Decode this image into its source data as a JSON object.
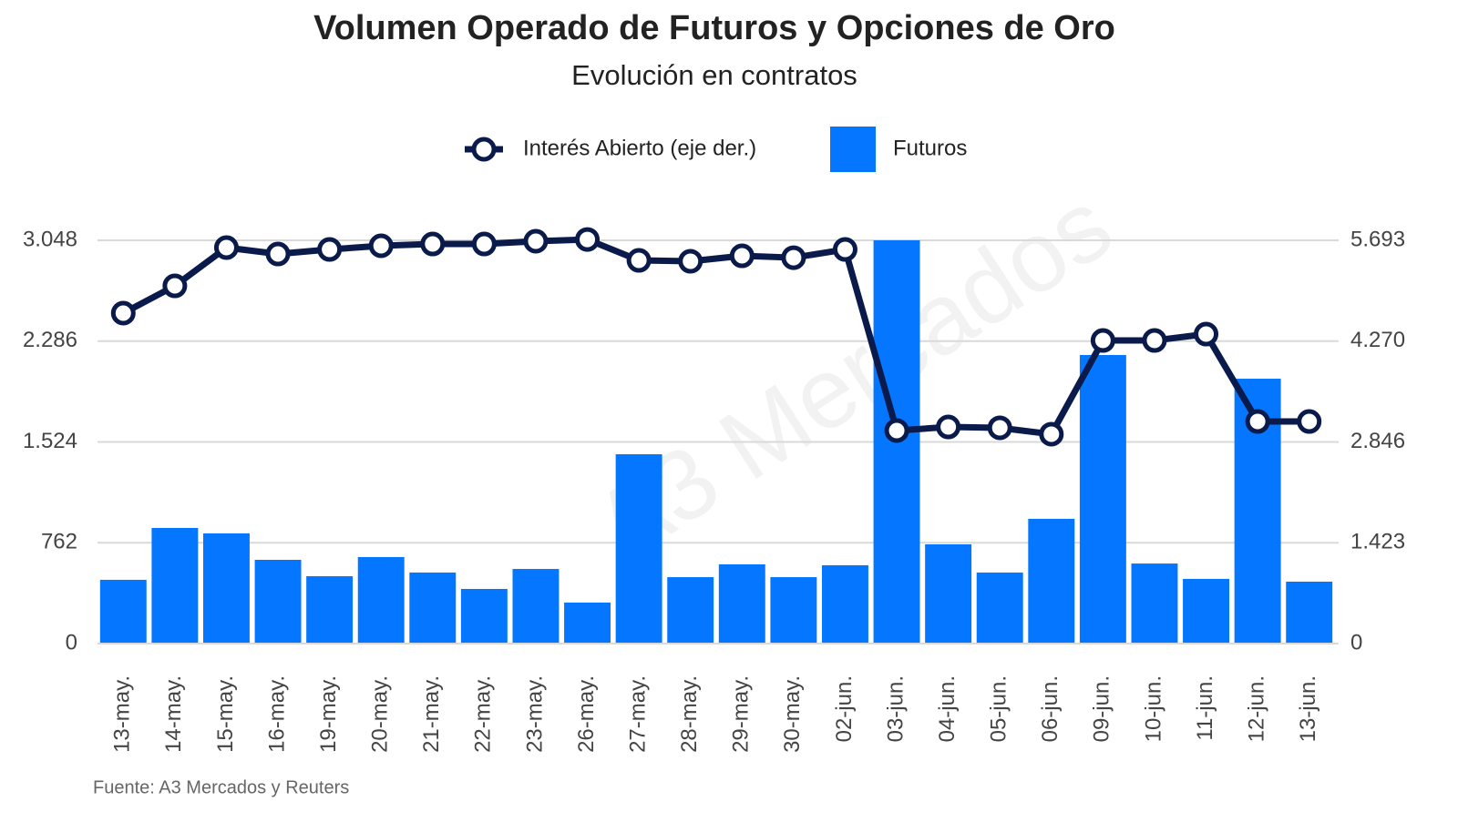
{
  "chart_data": {
    "type": "bar_line",
    "title": "Volumen Operado de Futuros y Opciones de Oro",
    "subtitle": "Evolución en contratos",
    "watermark": "A3 Mercados",
    "source": "Fuente: A3 Mercados y Reuters",
    "categories": [
      "13-may.",
      "14-may.",
      "15-may.",
      "16-may.",
      "19-may.",
      "20-may.",
      "21-may.",
      "22-may.",
      "23-may.",
      "26-may.",
      "27-may.",
      "28-may.",
      "29-may.",
      "30-may.",
      "02-jun.",
      "03-jun.",
      "04-jun.",
      "05-jun.",
      "06-jun.",
      "09-jun.",
      "10-jun.",
      "11-jun.",
      "12-jun.",
      "13-jun."
    ],
    "series": [
      {
        "name": "Interés Abierto (eje der.)",
        "type": "line",
        "axis": "y2",
        "color": "#0a1a4a",
        "values": [
          4665,
          5050,
          5590,
          5500,
          5564,
          5616,
          5641,
          5641,
          5680,
          5705,
          5410,
          5397,
          5474,
          5448,
          5564,
          3007,
          3058,
          3046,
          2956,
          4279,
          4279,
          4369,
          3135,
          3135
        ]
      },
      {
        "name": "Futuros",
        "type": "bar",
        "color": "#0476ff",
        "values": [
          482,
          874,
          833,
          633,
          509,
          654,
          537,
          413,
          564,
          310,
          1431,
          502,
          599,
          502,
          592,
          3048,
          750,
          537,
          943,
          2181,
          605,
          489,
          2002,
          468
        ]
      }
    ],
    "ylim": [
      0,
      3048
    ],
    "yticks": [
      0,
      762,
      {
        "value": 1524,
        "label": "1.524"
      },
      {
        "value": 2286,
        "label": "2.286"
      },
      {
        "value": 3048,
        "label": "3.048"
      }
    ],
    "y2lim": [
      0,
      5693
    ],
    "y2ticks": [
      0,
      {
        "value": 1423,
        "label": "1.423"
      },
      {
        "value": 2846,
        "label": "2.846"
      },
      {
        "value": 4270,
        "label": "4.270"
      },
      {
        "value": 5693,
        "label": "5.693"
      }
    ],
    "grid": true,
    "legend": "top"
  }
}
